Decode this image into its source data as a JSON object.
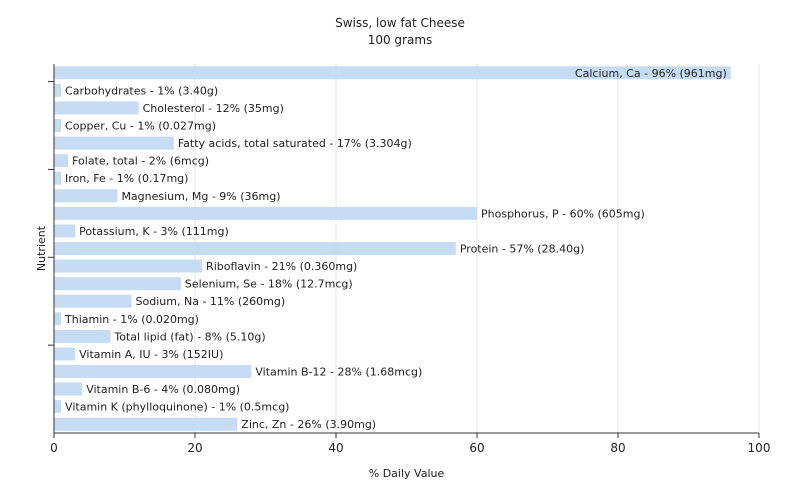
{
  "chart_data": {
    "type": "bar",
    "orientation": "horizontal",
    "title": "Swiss, low fat Cheese",
    "subtitle": "100 grams",
    "xlabel": "% Daily Value",
    "ylabel": "Nutrient",
    "xlim": [
      0,
      100
    ],
    "xticks": [
      0,
      20,
      40,
      60,
      80,
      100
    ],
    "grid": true,
    "bar_color": "#c6dcf5",
    "categories": [
      "Calcium, Ca",
      "Carbohydrates",
      "Cholesterol",
      "Copper, Cu",
      "Fatty acids, total saturated",
      "Folate, total",
      "Iron, Fe",
      "Magnesium, Mg",
      "Phosphorus, P",
      "Potassium, K",
      "Protein",
      "Riboflavin",
      "Selenium, Se",
      "Sodium, Na",
      "Thiamin",
      "Total lipid (fat)",
      "Vitamin A, IU",
      "Vitamin B-12",
      "Vitamin B-6",
      "Vitamin K (phylloquinone)",
      "Zinc, Zn"
    ],
    "values": [
      96,
      1,
      12,
      1,
      17,
      2,
      1,
      9,
      60,
      3,
      57,
      21,
      18,
      11,
      1,
      8,
      3,
      28,
      4,
      1,
      26
    ],
    "labels": [
      "Calcium, Ca - 96% (961mg)",
      "Carbohydrates - 1% (3.40g)",
      "Cholesterol - 12% (35mg)",
      "Copper, Cu - 1% (0.027mg)",
      "Fatty acids, total saturated - 17% (3.304g)",
      "Folate, total - 2% (6mcg)",
      "Iron, Fe - 1% (0.17mg)",
      "Magnesium, Mg - 9% (36mg)",
      "Phosphorus, P - 60% (605mg)",
      "Potassium, K - 3% (111mg)",
      "Protein - 57% (28.40g)",
      "Riboflavin - 21% (0.360mg)",
      "Selenium, Se - 18% (12.7mcg)",
      "Sodium, Na - 11% (260mg)",
      "Thiamin - 1% (0.020mg)",
      "Total lipid (fat) - 8% (5.10g)",
      "Vitamin A, IU - 3% (152IU)",
      "Vitamin B-12 - 28% (1.68mcg)",
      "Vitamin B-6 - 4% (0.080mg)",
      "Vitamin K (phylloquinone) - 1% (0.5mcg)",
      "Zinc, Zn - 26% (3.90mg)"
    ]
  }
}
